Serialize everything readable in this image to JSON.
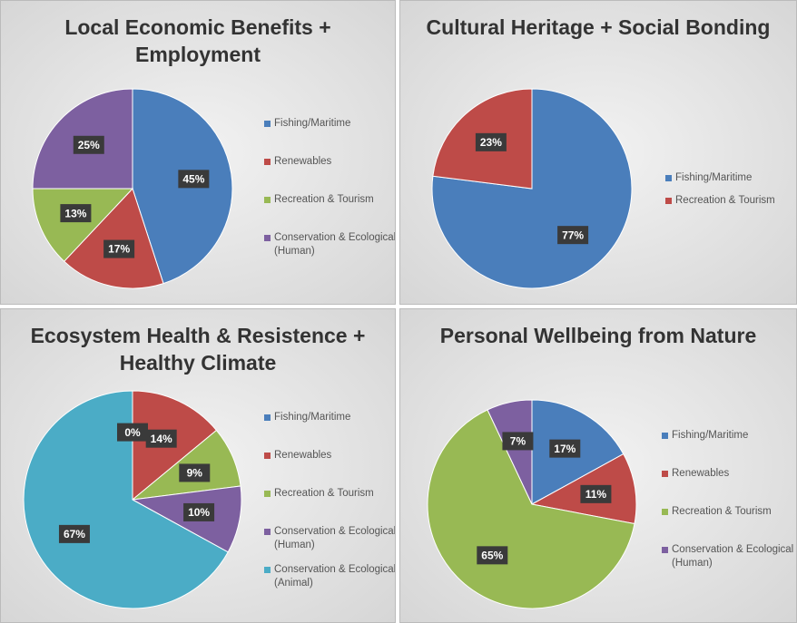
{
  "chart_data": [
    {
      "type": "pie",
      "title": "Local Economic Benefits + Employment",
      "categories": [
        "Fishing/Maritime",
        "Renewables",
        "Recreation & Tourism",
        "Conservation & Ecological (Human)"
      ],
      "values": [
        45,
        17,
        13,
        25
      ],
      "value_labels": [
        "45%",
        "17%",
        "13%",
        "25%"
      ],
      "colors": [
        "#4a7ebb",
        "#be4b48",
        "#98b954",
        "#7d60a0"
      ]
    },
    {
      "type": "pie",
      "title": "Cultural Heritage + Social Bonding",
      "categories": [
        "Fishing/Maritime",
        "Recreation & Tourism"
      ],
      "values": [
        77,
        23
      ],
      "value_labels": [
        "77%",
        "23%"
      ],
      "colors": [
        "#4a7ebb",
        "#be4b48"
      ]
    },
    {
      "type": "pie",
      "title": "Ecosystem Health & Resistence + Healthy Climate",
      "categories": [
        "Fishing/Maritime",
        "Renewables",
        "Recreation & Tourism",
        "Conservation & Ecological (Human)",
        "Conservation & Ecological (Animal)"
      ],
      "values": [
        0,
        14,
        9,
        10,
        67
      ],
      "value_labels": [
        "0%",
        "14%",
        "9%",
        "10%",
        "67%"
      ],
      "colors": [
        "#4a7ebb",
        "#be4b48",
        "#98b954",
        "#7d60a0",
        "#4bacc6"
      ]
    },
    {
      "type": "pie",
      "title": "Personal Wellbeing from Nature",
      "categories": [
        "Fishing/Maritime",
        "Renewables",
        "Recreation & Tourism",
        "Conservation & Ecological (Human)"
      ],
      "values": [
        17,
        11,
        65,
        7
      ],
      "value_labels": [
        "17%",
        "11%",
        "65%",
        "7%"
      ],
      "colors": [
        "#4a7ebb",
        "#be4b48",
        "#98b954",
        "#7d60a0"
      ]
    }
  ]
}
